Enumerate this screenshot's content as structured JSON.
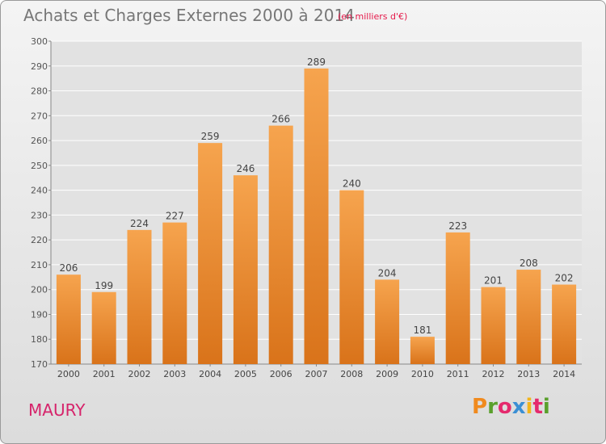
{
  "chart_data": {
    "type": "bar",
    "title": "Achats et Charges Externes 2000 à 2014",
    "subtitle": "(en milliers d'€)",
    "categories": [
      "2000",
      "2001",
      "2002",
      "2003",
      "2004",
      "2005",
      "2006",
      "2007",
      "2008",
      "2009",
      "2010",
      "2011",
      "2012",
      "2013",
      "2014"
    ],
    "values": [
      206,
      199,
      224,
      227,
      259,
      246,
      266,
      289,
      240,
      204,
      181,
      223,
      201,
      208,
      202
    ],
    "ylim": [
      170,
      300
    ],
    "yticks": [
      170,
      180,
      190,
      200,
      210,
      220,
      230,
      240,
      250,
      260,
      270,
      280,
      290,
      300
    ],
    "grid": true,
    "colors": {
      "bar_top": "#f6a44e",
      "bar_bottom": "#d9731a",
      "grid": "#ffffff",
      "plot_bg": "#e2e2e2"
    }
  },
  "commune": "MAURY",
  "brand": {
    "letters": [
      "P",
      "r",
      "o",
      "x",
      "i",
      "t",
      "i"
    ],
    "colors": [
      "#f08a1e",
      "#5aa02c",
      "#e52a6d",
      "#3b8fd4",
      "#f2b51c",
      "#e52a6d",
      "#5aa02c"
    ]
  }
}
